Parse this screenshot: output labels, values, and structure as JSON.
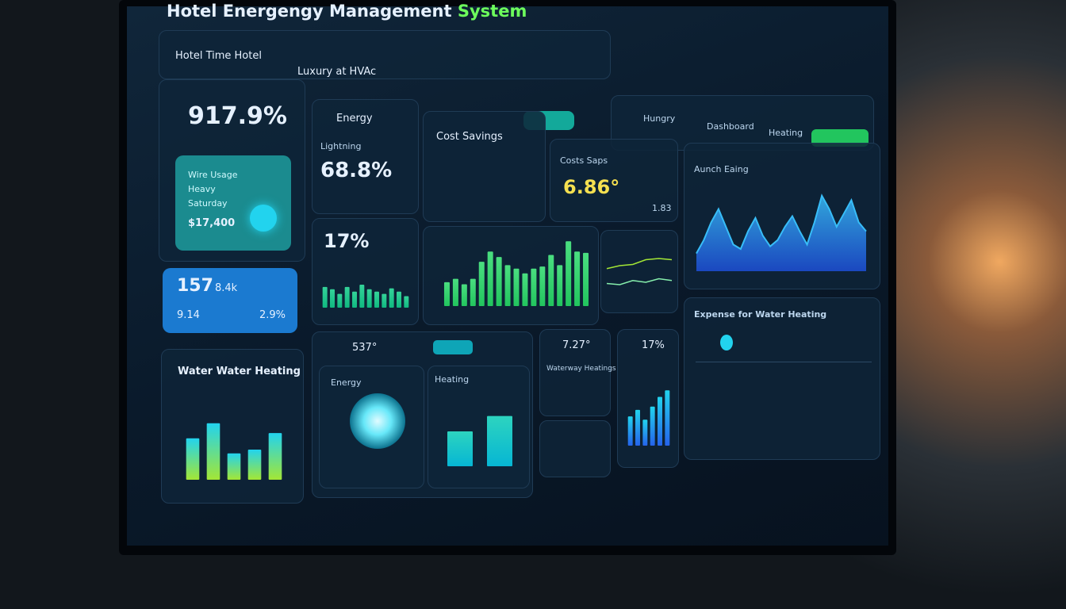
{
  "header": {
    "title": "Hotel Energengy Management",
    "title_accent": "System",
    "nav_left": "Hotel Time Hotel",
    "nav_right": "Luxury at HVAc",
    "tabs": [
      "Hungry",
      "Dashboard",
      "Heating"
    ]
  },
  "kpi_main": {
    "value": "917.9%"
  },
  "usage_card": {
    "lines": [
      "Wire Usage",
      "Heavy",
      "Saturday"
    ],
    "value": "$17,400"
  },
  "blue_card": {
    "value": "157",
    "unit": "8.4k",
    "left": "9.14",
    "right": "2.9%"
  },
  "water": {
    "title": "Water Water Heating"
  },
  "energy": {
    "title": "Energy",
    "label": "Lightning",
    "value": "68.8%"
  },
  "cost": {
    "title": "Cost Savings"
  },
  "costs_saps": {
    "title": "Costs Saps",
    "value": "6.86°",
    "note": "1.83"
  },
  "pct": {
    "value": "17%"
  },
  "area": {
    "title": "Aunch Eaing"
  },
  "expense": {
    "title": "Expense for Water Heating"
  },
  "occupancy": {
    "value": "537°"
  },
  "bulb": {
    "title": "Energy"
  },
  "heating": {
    "title": "Heating"
  },
  "small1": {
    "value": "7.27°",
    "title": "Waterway Heatings"
  },
  "small2": {
    "value": "17%"
  },
  "charts": {
    "water_bars": {
      "type": "bar",
      "values": [
        55,
        75,
        35,
        40,
        62
      ],
      "ylim": [
        0,
        100
      ],
      "colors": [
        "#22d3ee",
        "#a3e635"
      ]
    },
    "pct_bars": {
      "type": "bar",
      "values": [
        45,
        40,
        30,
        45,
        35,
        50,
        40,
        35,
        30,
        42,
        35,
        25
      ],
      "ylim": [
        0,
        100
      ],
      "colors": [
        "#34d399",
        "#10b981"
      ]
    },
    "green_bars": {
      "type": "bar",
      "values": [
        35,
        40,
        32,
        40,
        65,
        80,
        72,
        60,
        55,
        48,
        55,
        58,
        75,
        60,
        95,
        80,
        78
      ],
      "ylim": [
        0,
        100
      ],
      "colors": [
        "#4ade80",
        "#22c55e"
      ]
    },
    "teal_bars": {
      "type": "bar",
      "values": [
        45,
        55,
        40,
        60,
        75,
        85
      ],
      "ylim": [
        0,
        100
      ],
      "colors": [
        "#22d3ee",
        "#2563eb"
      ]
    },
    "heat_bars": {
      "type": "bar",
      "values": [
        50,
        72
      ],
      "ylim": [
        0,
        100
      ],
      "colors": [
        "#2dd4bf",
        "#06b6d4"
      ]
    },
    "area": {
      "type": "area",
      "values": [
        20,
        35,
        55,
        70,
        50,
        30,
        25,
        45,
        60,
        40,
        28,
        35,
        50,
        62,
        45,
        30,
        55,
        85,
        70,
        50,
        65,
        80,
        55,
        45
      ],
      "ylim": [
        0,
        100
      ],
      "colors": [
        "#38bdf8",
        "#1d4ed8"
      ]
    },
    "lines": {
      "type": "line",
      "ylim": [
        0,
        100
      ],
      "series": [
        {
          "color": "#a3e635",
          "values": [
            55,
            60,
            62,
            70,
            72,
            70
          ]
        },
        {
          "color": "#86efac",
          "values": [
            30,
            28,
            35,
            32,
            38,
            35
          ]
        }
      ]
    }
  }
}
